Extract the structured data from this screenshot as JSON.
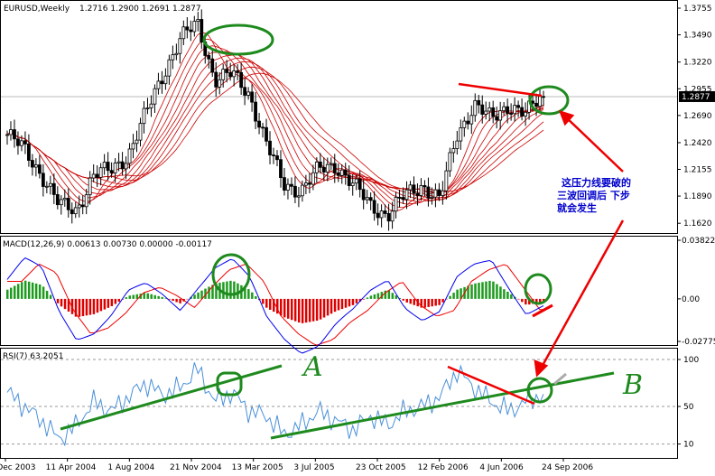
{
  "panels": {
    "price": {
      "symbol": "EURUSD,Weekly",
      "ohlc": "1.2716 1.2900 1.2691 1.2877",
      "last_price_label": "1.2877",
      "y_ticks": [
        "1.3755",
        "1.3490",
        "1.3220",
        "1.2955",
        "1.2690",
        "1.2420",
        "1.2155",
        "1.1890",
        "1.1620"
      ],
      "y_tick_values": [
        1.3755,
        1.349,
        1.322,
        1.2955,
        1.269,
        1.242,
        1.2155,
        1.189,
        1.162
      ]
    },
    "macd": {
      "header": "MACD(12,26,9) 0.00613 0.00730 0.00000 -0.00117",
      "y_ticks": [
        "0.03822",
        "0.00",
        "-0.02775"
      ],
      "y_tick_values": [
        0.03822,
        0,
        -0.02775
      ]
    },
    "rsi": {
      "header": "RSI(7) 63.2051",
      "y_ticks": [
        "100",
        "50",
        "10"
      ],
      "y_tick_values": [
        100,
        50,
        10
      ]
    }
  },
  "x_axis": {
    "labels": [
      "21 Dec 2003",
      "11 Apr 2004",
      "1 Aug 2004",
      "21 Nov 2004",
      "13 Mar 2005",
      "3 Jul 2005",
      "23 Oct 2005",
      "12 Feb 2006",
      "4 Jun 2006",
      "24 Sep 2006"
    ]
  },
  "annotations": {
    "chinese_note_lines": [
      "这压力线要破的",
      "三波回调后  下步",
      "就会发生"
    ],
    "letter_a": "A",
    "letter_b": "B"
  },
  "colors": {
    "candle": "#000000",
    "ribbon": "#cc0000",
    "macd_pos": "#1e9a1e",
    "macd_neg": "#dd0000",
    "macd_line": "#0000ee",
    "macd_signal": "#ee0000",
    "rsi_line": "#4a90d9",
    "annotation_green": "#1e8a1e",
    "annotation_red": "#ee0000",
    "note_blue": "#0000cc"
  },
  "chart_data": [
    {
      "type": "candlestick",
      "title": "EURUSD,Weekly",
      "x": [
        "21 Dec 2003",
        "11 Apr 2004",
        "1 Aug 2004",
        "21 Nov 2004",
        "13 Mar 2005",
        "3 Jul 2005",
        "23 Oct 2005",
        "12 Feb 2006",
        "4 Jun 2006",
        "24 Sep 2006"
      ],
      "close_path": [
        1.25,
        1.235,
        1.21,
        1.18,
        1.175,
        1.21,
        1.215,
        1.23,
        1.27,
        1.31,
        1.345,
        1.36,
        1.305,
        1.31,
        1.29,
        1.24,
        1.2,
        1.195,
        1.215,
        1.22,
        1.2,
        1.18,
        1.17,
        1.19,
        1.2,
        1.185,
        1.25,
        1.28,
        1.265,
        1.28,
        1.27,
        1.29
      ],
      "last": 1.2877,
      "ylim": [
        1.155,
        1.38
      ]
    },
    {
      "type": "bar",
      "title": "MACD(12,26,9)",
      "values": [
        0.006,
        0.012,
        0.009,
        -0.004,
        -0.012,
        -0.01,
        -0.005,
        0.002,
        0.004,
        0.001,
        -0.003,
        0.004,
        0.01,
        0.012,
        0.006,
        -0.006,
        -0.012,
        -0.016,
        -0.014,
        -0.008,
        -0.004,
        0.002,
        0.006,
        -0.002,
        -0.006,
        -0.004,
        0.006,
        0.01,
        0.012,
        0.004,
        -0.004,
        -0.002
      ],
      "ylim": [
        -0.02775,
        0.03822
      ]
    },
    {
      "type": "line",
      "title": "RSI(7)",
      "values": [
        65,
        50,
        35,
        15,
        30,
        55,
        45,
        60,
        75,
        62,
        70,
        90,
        55,
        65,
        45,
        40,
        20,
        30,
        45,
        35,
        25,
        40,
        30,
        45,
        50,
        60,
        88,
        70,
        55,
        45,
        55,
        63.2051
      ],
      "ylim": [
        0,
        100
      ]
    }
  ]
}
